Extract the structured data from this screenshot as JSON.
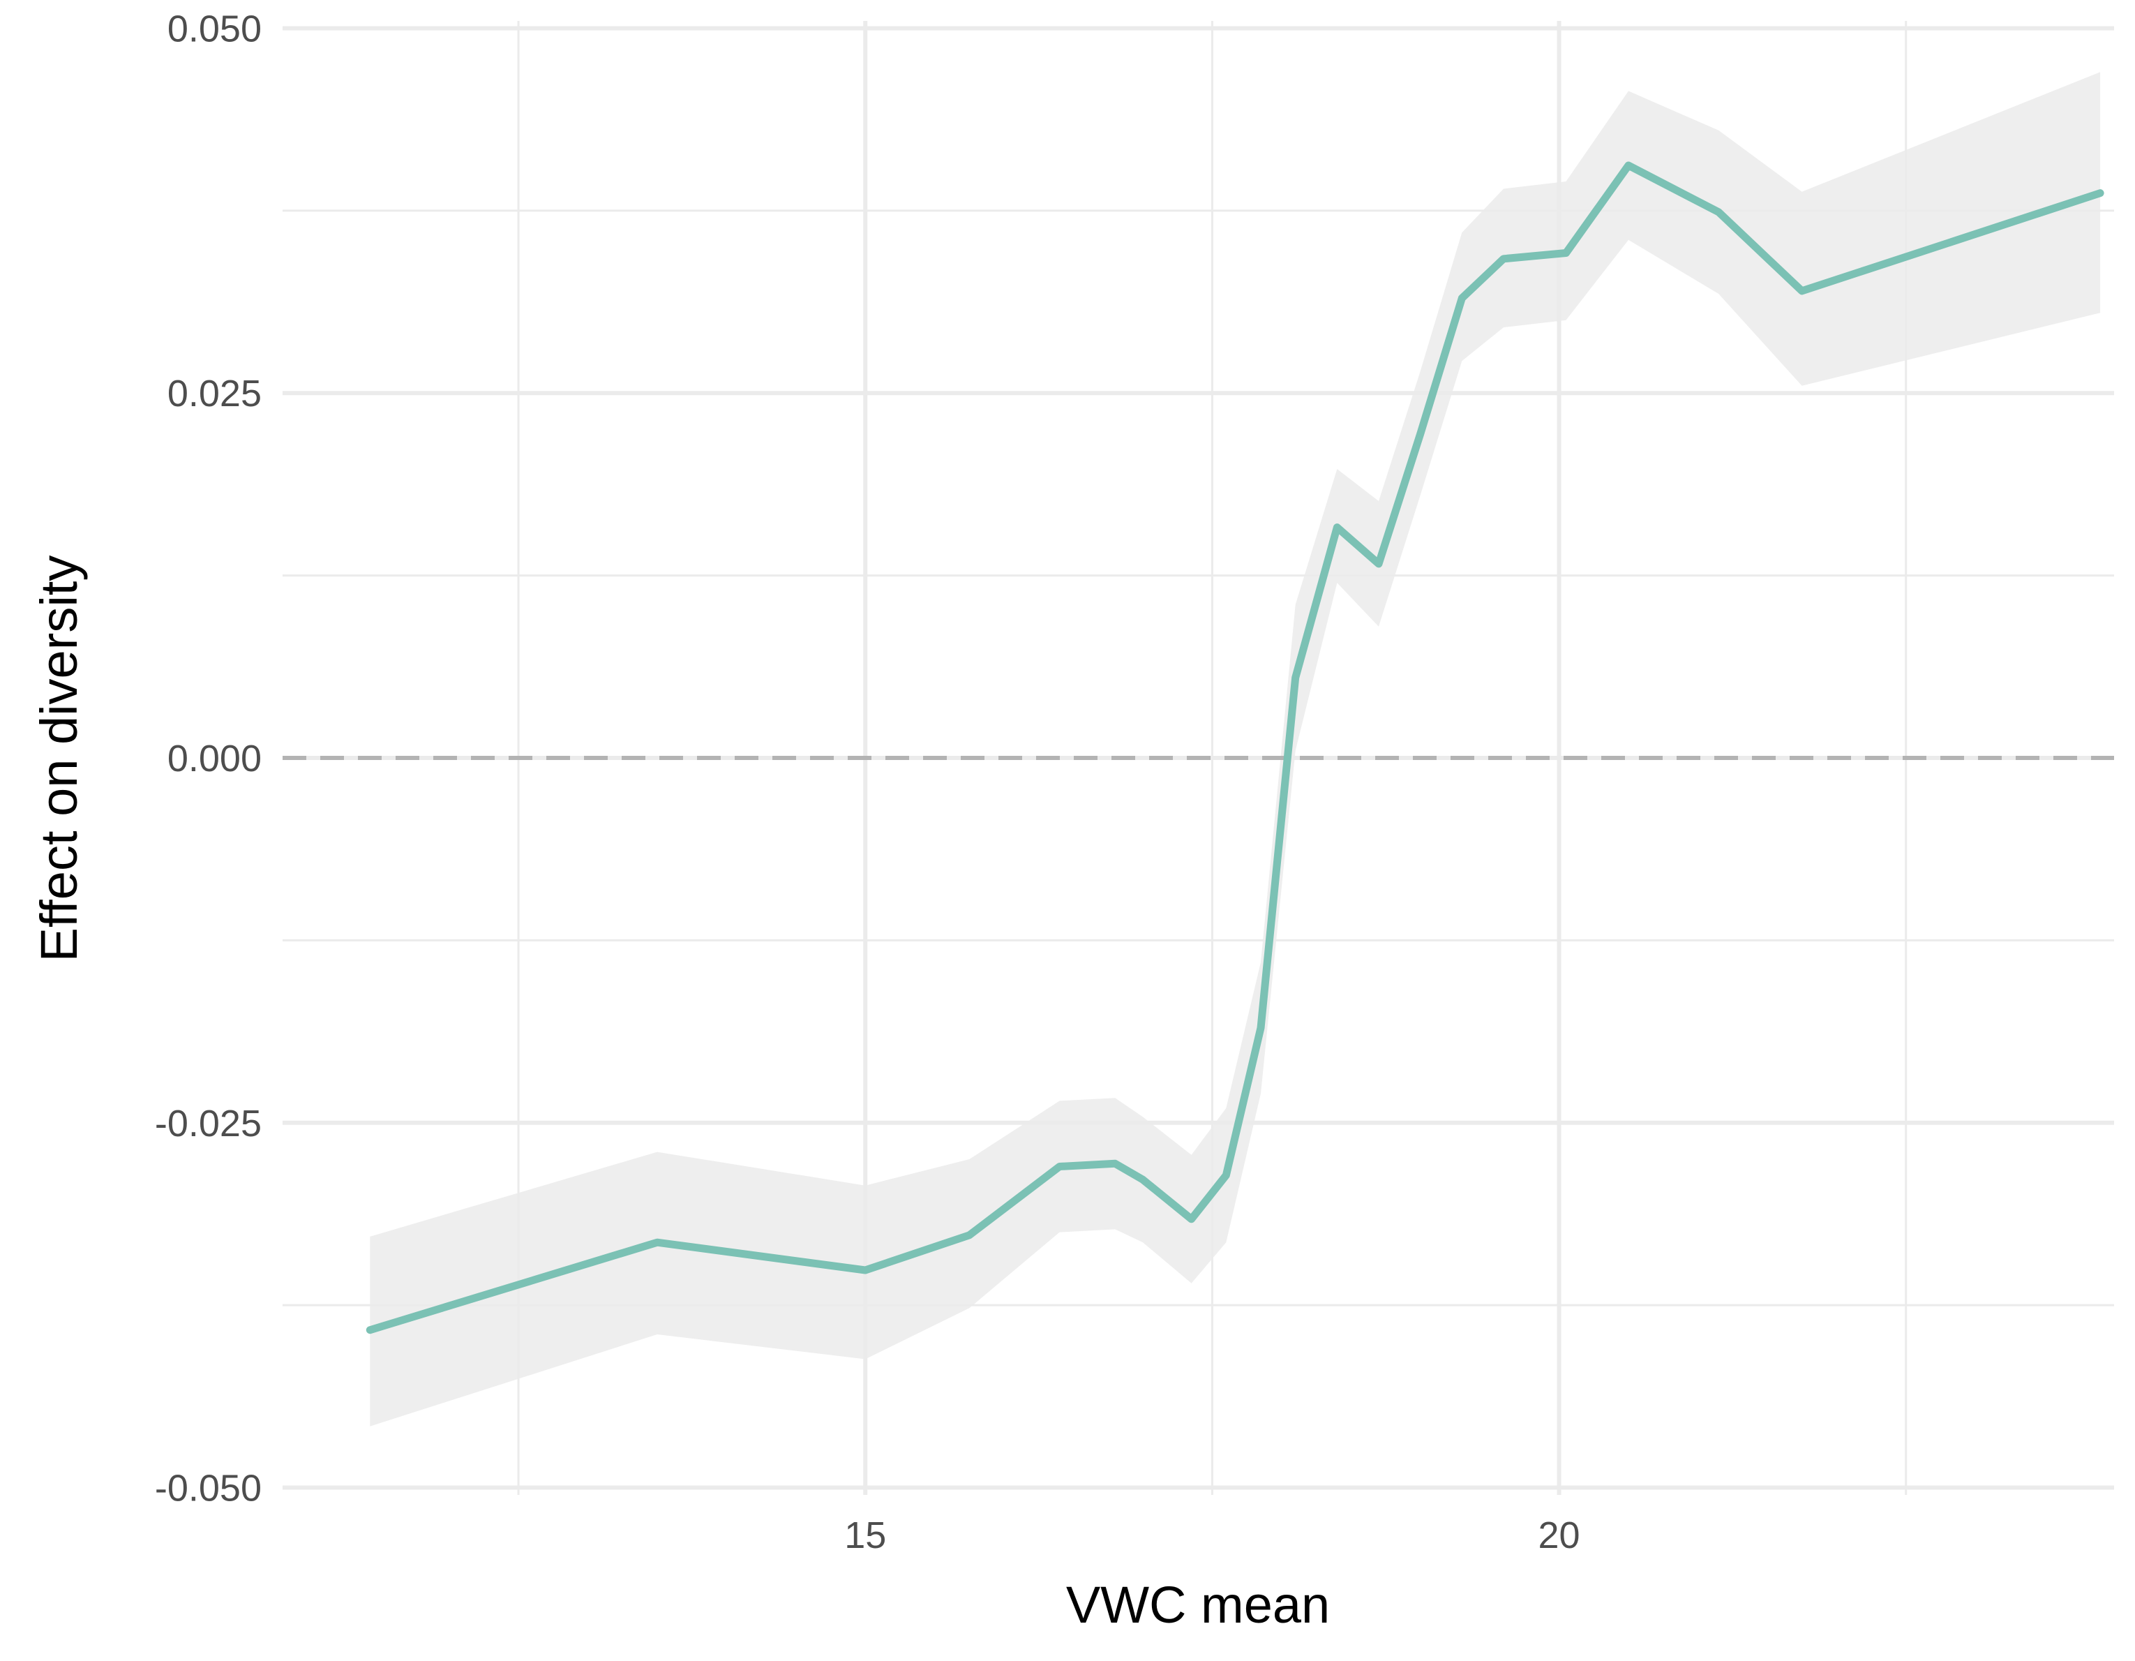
{
  "chart_data": {
    "type": "line",
    "title": "",
    "xlabel": "VWC mean",
    "ylabel": "Effect on diversity",
    "xlim": [
      10.8,
      24.0
    ],
    "ylim": [
      -0.0505,
      0.0505
    ],
    "x_ticks": [
      15,
      20
    ],
    "x_tick_labels": [
      "15",
      "20"
    ],
    "x_minor_ticks": [
      12.5,
      17.5,
      22.5
    ],
    "y_ticks": [
      -0.05,
      -0.025,
      0.0,
      0.025,
      0.05
    ],
    "y_tick_labels": [
      "-0.050",
      "-0.025",
      "0.000",
      "0.025",
      "0.050"
    ],
    "y_minor_ticks": [
      -0.0375,
      -0.0125,
      0.0125,
      0.0375
    ],
    "grid": true,
    "reference_line": {
      "y": 0.0,
      "style": "dashed",
      "color": "#b3b3b3"
    },
    "line_color": "#7bc1b4",
    "ribbon_color": "#ebebeb",
    "series": [
      {
        "x": [
          11.43,
          13.5,
          15.0,
          15.75,
          16.4,
          16.8,
          17.0,
          17.35,
          17.6,
          17.85,
          18.1,
          18.4,
          18.7,
          19.0,
          19.3,
          19.6,
          20.05,
          20.5,
          21.15,
          21.75,
          23.9
        ],
        "y": [
          -0.0392,
          -0.0332,
          -0.0351,
          -0.0327,
          -0.028,
          -0.0278,
          -0.0289,
          -0.0316,
          -0.0286,
          -0.0185,
          0.0055,
          0.0158,
          0.0133,
          0.0222,
          0.0315,
          0.0342,
          0.0346,
          0.0406,
          0.0374,
          0.032,
          0.0387
        ],
        "lower": [
          -0.0458,
          -0.0395,
          -0.0412,
          -0.0377,
          -0.0325,
          -0.0323,
          -0.0332,
          -0.036,
          -0.0332,
          -0.023,
          0.0005,
          0.012,
          0.009,
          0.018,
          0.0272,
          0.0295,
          0.03,
          0.0355,
          0.0318,
          0.0255,
          0.0305
        ],
        "upper": [
          -0.0328,
          -0.027,
          -0.0293,
          -0.0275,
          -0.0235,
          -0.0233,
          -0.0246,
          -0.0272,
          -0.024,
          -0.014,
          0.0105,
          0.0198,
          0.0176,
          0.0265,
          0.036,
          0.039,
          0.0395,
          0.0457,
          0.043,
          0.0388,
          0.047
        ]
      }
    ]
  }
}
